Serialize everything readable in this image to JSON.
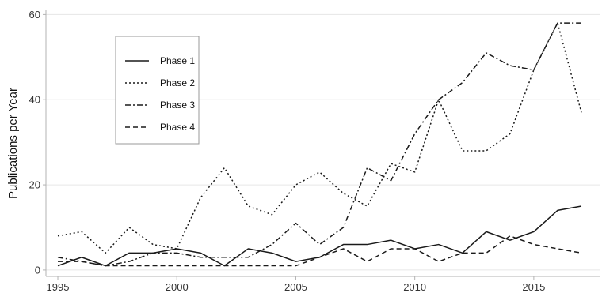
{
  "chart_data": {
    "type": "line",
    "title": "",
    "xlabel": "",
    "ylabel": "Publications per Year",
    "xlim": [
      1994.5,
      2017.8
    ],
    "ylim": [
      -1.5,
      61
    ],
    "xticks": [
      1995,
      2000,
      2005,
      2010,
      2015
    ],
    "yticks": [
      0,
      20,
      40,
      60
    ],
    "grid": "horizontal",
    "legend_position": "top-left",
    "x": [
      1995,
      1996,
      1997,
      1998,
      1999,
      2000,
      2001,
      2002,
      2003,
      2004,
      2005,
      2006,
      2007,
      2008,
      2009,
      2010,
      2011,
      2012,
      2013,
      2014,
      2015,
      2016,
      2017
    ],
    "series": [
      {
        "name": "Phase 1",
        "dash": "solid",
        "values": [
          1,
          3,
          1,
          4,
          4,
          5,
          4,
          1,
          5,
          4,
          2,
          3,
          6,
          6,
          7,
          5,
          6,
          4,
          9,
          7,
          9,
          14,
          15
        ]
      },
      {
        "name": "Phase 2",
        "dash": "dotted",
        "values": [
          8,
          9,
          4,
          10,
          6,
          5,
          17,
          24,
          15,
          13,
          20,
          23,
          18,
          15,
          25,
          23,
          40,
          28,
          28,
          32,
          47,
          58,
          37
        ]
      },
      {
        "name": "Phase 3",
        "dash": "dashdot",
        "values": [
          3,
          2,
          1,
          2,
          4,
          4,
          3,
          3,
          3,
          6,
          11,
          6,
          10,
          24,
          21,
          32,
          40,
          44,
          51,
          48,
          47,
          58,
          58
        ]
      },
      {
        "name": "Phase 4",
        "dash": "dashed",
        "values": [
          2,
          2,
          1,
          1,
          1,
          1,
          1,
          1,
          1,
          1,
          1,
          3,
          5,
          2,
          5,
          5,
          2,
          4,
          4,
          8,
          6,
          5,
          4
        ]
      }
    ]
  },
  "colors": {
    "line": "#1a1a1a",
    "grid": "#e6e6e6",
    "axis": "#b3b3b3",
    "legend_border": "#999999"
  }
}
